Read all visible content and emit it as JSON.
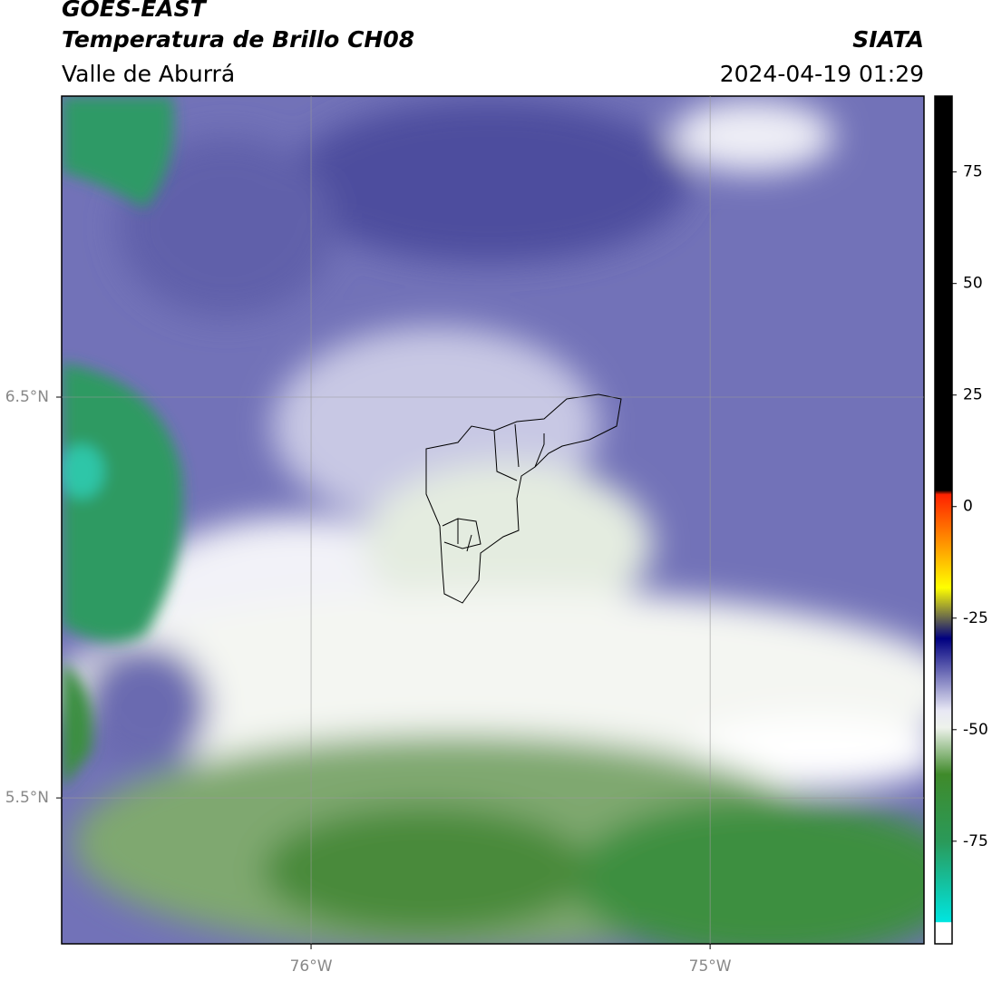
{
  "header": {
    "title": "GOES-EAST",
    "subtitle": "Temperatura de Brillo CH08",
    "region": "Valle de Aburrá",
    "source": "SIATA",
    "datetime": "2024-04-19 01:29"
  },
  "map": {
    "lon_range": [
      -76.625,
      -74.464
    ],
    "lat_range": [
      5.136,
      7.251
    ],
    "lon_ticks": [
      {
        "value": -76,
        "label": "76°W"
      },
      {
        "value": -75,
        "label": "75°W"
      }
    ],
    "lat_ticks": [
      {
        "value": 6.5,
        "label": "6.5°N"
      },
      {
        "value": 5.5,
        "label": "5.5°N"
      }
    ]
  },
  "colorbar": {
    "range": [
      -98,
      92
    ],
    "ticks": [
      -75,
      -50,
      -25,
      0,
      25,
      50,
      75
    ]
  }
}
